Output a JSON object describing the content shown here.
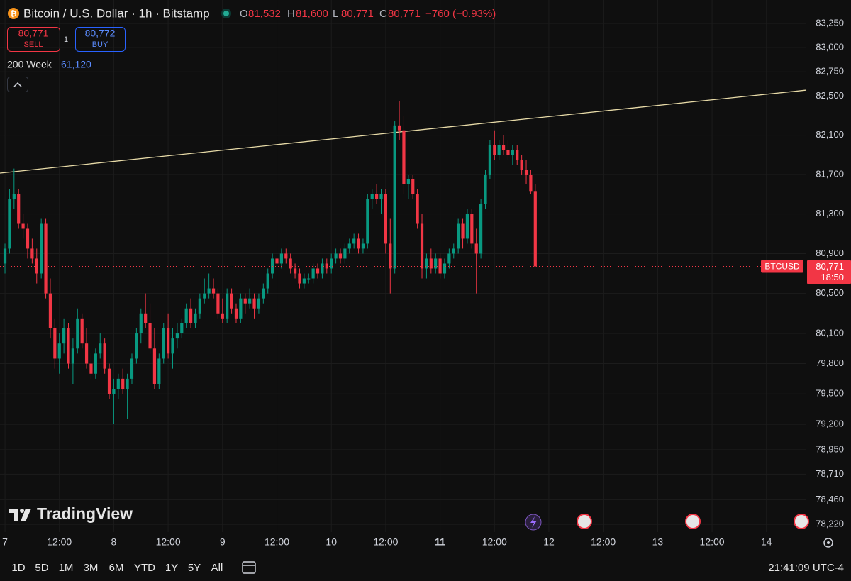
{
  "header": {
    "title": "Bitcoin / U.S. Dollar · 1h · Bitstamp",
    "ohlc": [
      {
        "key": "O",
        "value": "81,532"
      },
      {
        "key": "H",
        "value": "81,600"
      },
      {
        "key": "L",
        "value": "80,771"
      },
      {
        "key": "C",
        "value": "80,771"
      }
    ],
    "change": "−760 (−0.93%)",
    "sell_price": "80,771",
    "sell_label": "SELL",
    "quantity": "1",
    "buy_price": "80,772",
    "buy_label": "BUY",
    "indicator_name": "200 Week",
    "indicator_value": "61,120"
  },
  "watermark": "TradingView",
  "toolbar": {
    "ranges": [
      "1D",
      "5D",
      "1M",
      "3M",
      "6M",
      "YTD",
      "1Y",
      "5Y",
      "All"
    ],
    "clock": "21:41:09 UTC-4"
  },
  "chart_data": {
    "type": "candlestick",
    "log_scale": true,
    "grid": true,
    "up_color": "#089981",
    "down_color": "#f23645",
    "ylim": [
      78145,
      83493
    ],
    "yticks": [
      {
        "value": 83250,
        "label": "83,250"
      },
      {
        "value": 83000,
        "label": "83,000"
      },
      {
        "value": 82750,
        "label": "82,750"
      },
      {
        "value": 82500,
        "label": "82,500"
      },
      {
        "value": 82100,
        "label": "82,100"
      },
      {
        "value": 81700,
        "label": "81,700"
      },
      {
        "value": 81300,
        "label": "81,300"
      },
      {
        "value": 80900,
        "label": "80,900"
      },
      {
        "value": 80500,
        "label": "80,500"
      },
      {
        "value": 80100,
        "label": "80,100"
      },
      {
        "value": 79800,
        "label": "79,800"
      },
      {
        "value": 79500,
        "label": "79,500"
      },
      {
        "value": 79200,
        "label": "79,200"
      },
      {
        "value": 78950,
        "label": "78,950"
      },
      {
        "value": 78710,
        "label": "78,710"
      },
      {
        "value": 78460,
        "label": "78,460"
      },
      {
        "value": 78220,
        "label": "78,220"
      }
    ],
    "xlim": [
      -1.1,
      176.8
    ],
    "xticks": [
      {
        "value": 0,
        "label": "7"
      },
      {
        "value": 12,
        "label": "12:00"
      },
      {
        "value": 24,
        "label": "8"
      },
      {
        "value": 36,
        "label": "12:00"
      },
      {
        "value": 48,
        "label": "9"
      },
      {
        "value": 60,
        "label": "12:00"
      },
      {
        "value": 72,
        "label": "10"
      },
      {
        "value": 84,
        "label": "12:00"
      },
      {
        "value": 96,
        "label": "11"
      },
      {
        "value": 108,
        "label": "12:00"
      },
      {
        "value": 120,
        "label": "12"
      },
      {
        "value": 132,
        "label": "12:00"
      },
      {
        "value": 144,
        "label": "13"
      },
      {
        "value": 156,
        "label": "12:00"
      },
      {
        "value": 168,
        "label": "14"
      }
    ],
    "x": [
      0,
      1,
      2,
      3,
      4,
      5,
      6,
      7,
      8,
      9,
      10,
      11,
      12,
      13,
      14,
      15,
      16,
      17,
      18,
      19,
      20,
      21,
      22,
      23,
      24,
      25,
      26,
      27,
      28,
      29,
      30,
      31,
      32,
      33,
      34,
      35,
      36,
      37,
      38,
      39,
      40,
      41,
      42,
      43,
      44,
      45,
      46,
      47,
      48,
      49,
      50,
      51,
      52,
      53,
      54,
      55,
      56,
      57,
      58,
      59,
      60,
      61,
      62,
      63,
      64,
      65,
      66,
      67,
      68,
      69,
      70,
      71,
      72,
      73,
      74,
      75,
      76,
      77,
      78,
      79,
      80,
      81,
      82,
      83,
      84,
      85,
      86,
      87,
      88,
      89,
      90,
      91,
      92,
      93,
      94,
      95,
      96,
      97,
      98,
      99,
      100,
      101,
      102,
      103,
      104,
      105,
      106,
      107,
      108,
      109,
      110,
      111,
      112,
      113,
      114,
      115,
      116,
      117
    ],
    "candles": [
      [
        80800,
        81000,
        80700,
        80950
      ],
      [
        80950,
        81550,
        80900,
        81450
      ],
      [
        81450,
        81760,
        81350,
        81500
      ],
      [
        81500,
        81550,
        81150,
        81200
      ],
      [
        81200,
        81300,
        81050,
        81150
      ],
      [
        81150,
        81200,
        80850,
        80950
      ],
      [
        80950,
        81050,
        80800,
        80850
      ],
      [
        80850,
        80950,
        80600,
        80700
      ],
      [
        80700,
        81250,
        80650,
        81200
      ],
      [
        81200,
        81250,
        80450,
        80500
      ],
      [
        80500,
        80650,
        80050,
        80150
      ],
      [
        80150,
        80250,
        79750,
        79850
      ],
      [
        79850,
        80100,
        79700,
        80000
      ],
      [
        80000,
        80250,
        79900,
        80150
      ],
      [
        80150,
        80200,
        79750,
        79800
      ],
      [
        79800,
        80050,
        79600,
        79950
      ],
      [
        79950,
        80350,
        79900,
        80250
      ],
      [
        80250,
        80300,
        79950,
        80000
      ],
      [
        80000,
        80150,
        79750,
        79800
      ],
      [
        79800,
        79900,
        79650,
        79700
      ],
      [
        79700,
        79950,
        79650,
        79900
      ],
      [
        79900,
        80100,
        79850,
        80000
      ],
      [
        80000,
        80050,
        79700,
        79750
      ],
      [
        79750,
        79800,
        79450,
        79500
      ],
      [
        79500,
        79650,
        79200,
        79550
      ],
      [
        79550,
        79700,
        79450,
        79650
      ],
      [
        79650,
        79750,
        79500,
        79550
      ],
      [
        79550,
        79700,
        79250,
        79650
      ],
      [
        79650,
        79900,
        79600,
        79850
      ],
      [
        79850,
        80150,
        79800,
        80100
      ],
      [
        80100,
        80350,
        80000,
        80300
      ],
      [
        80300,
        80500,
        80150,
        80200
      ],
      [
        80200,
        80400,
        79900,
        79950
      ],
      [
        79950,
        80150,
        79550,
        79600
      ],
      [
        79600,
        79900,
        79550,
        79850
      ],
      [
        79850,
        80200,
        79800,
        80150
      ],
      [
        80150,
        80300,
        79850,
        79900
      ],
      [
        79900,
        80150,
        79750,
        80050
      ],
      [
        80050,
        80200,
        79950,
        80100
      ],
      [
        80100,
        80250,
        80050,
        80200
      ],
      [
        80200,
        80400,
        80150,
        80350
      ],
      [
        80350,
        80450,
        80150,
        80200
      ],
      [
        80200,
        80350,
        80150,
        80300
      ],
      [
        80300,
        80500,
        80250,
        80450
      ],
      [
        80450,
        80650,
        80400,
        80500
      ],
      [
        80500,
        80700,
        80450,
        80550
      ],
      [
        80550,
        80650,
        80450,
        80500
      ],
      [
        80500,
        80550,
        80250,
        80300
      ],
      [
        80300,
        80450,
        80200,
        80250
      ],
      [
        80250,
        80550,
        80200,
        80500
      ],
      [
        80500,
        80550,
        80300,
        80350
      ],
      [
        80350,
        80400,
        80200,
        80250
      ],
      [
        80250,
        80500,
        80200,
        80450
      ],
      [
        80450,
        80500,
        80300,
        80400
      ],
      [
        80400,
        80550,
        80350,
        80450
      ],
      [
        80450,
        80500,
        80250,
        80350
      ],
      [
        80350,
        80500,
        80300,
        80450
      ],
      [
        80450,
        80600,
        80400,
        80550
      ],
      [
        80550,
        80750,
        80500,
        80700
      ],
      [
        80700,
        80900,
        80650,
        80850
      ],
      [
        80850,
        80950,
        80700,
        80800
      ],
      [
        80800,
        80950,
        80750,
        80900
      ],
      [
        80900,
        80950,
        80800,
        80850
      ],
      [
        80850,
        80900,
        80700,
        80750
      ],
      [
        80750,
        80800,
        80650,
        80700
      ],
      [
        80700,
        80750,
        80550,
        80600
      ],
      [
        80600,
        80700,
        80550,
        80650
      ],
      [
        80650,
        80700,
        80600,
        80650
      ],
      [
        80650,
        80800,
        80600,
        80750
      ],
      [
        80750,
        80800,
        80650,
        80700
      ],
      [
        80700,
        80850,
        80650,
        80800
      ],
      [
        80800,
        80850,
        80700,
        80750
      ],
      [
        80750,
        80900,
        80700,
        80850
      ],
      [
        80850,
        80950,
        80800,
        80900
      ],
      [
        80900,
        80950,
        80800,
        80850
      ],
      [
        80850,
        81000,
        80800,
        80950
      ],
      [
        80950,
        81050,
        80900,
        81000
      ],
      [
        81000,
        81100,
        80950,
        81050
      ],
      [
        81050,
        81100,
        80900,
        80950
      ],
      [
        80950,
        81050,
        80900,
        81000
      ],
      [
        81000,
        81500,
        80950,
        81450
      ],
      [
        81450,
        81550,
        81350,
        81500
      ],
      [
        81500,
        81600,
        81400,
        81450
      ],
      [
        81450,
        81550,
        81300,
        81500
      ],
      [
        81500,
        81550,
        80900,
        81000
      ],
      [
        81000,
        81250,
        80500,
        80750
      ],
      [
        80750,
        82250,
        80700,
        82200
      ],
      [
        82200,
        82450,
        82050,
        82150
      ],
      [
        82150,
        82300,
        81500,
        81600
      ],
      [
        81600,
        81700,
        81450,
        81650
      ],
      [
        81650,
        81700,
        81450,
        81500
      ],
      [
        81500,
        81550,
        81150,
        81200
      ],
      [
        81200,
        81300,
        80650,
        80750
      ],
      [
        80750,
        80900,
        80650,
        80850
      ],
      [
        80850,
        80950,
        80700,
        80750
      ],
      [
        80750,
        80900,
        80700,
        80850
      ],
      [
        80850,
        80900,
        80650,
        80700
      ],
      [
        80700,
        80850,
        80650,
        80800
      ],
      [
        80800,
        80950,
        80750,
        80900
      ],
      [
        80900,
        81000,
        80850,
        80950
      ],
      [
        80950,
        81250,
        80900,
        81200
      ],
      [
        81200,
        81250,
        80950,
        81050
      ],
      [
        81050,
        81350,
        81000,
        81300
      ],
      [
        81300,
        81350,
        80950,
        81000
      ],
      [
        81000,
        81150,
        80500,
        80900
      ],
      [
        80900,
        81450,
        80850,
        81400
      ],
      [
        81400,
        81750,
        81350,
        81700
      ],
      [
        81700,
        82050,
        81650,
        82000
      ],
      [
        82000,
        82150,
        81850,
        81900
      ],
      [
        81900,
        82050,
        81850,
        82000
      ],
      [
        82000,
        82100,
        81900,
        81950
      ],
      [
        81950,
        82050,
        81850,
        81900
      ],
      [
        81900,
        82000,
        81800,
        81950
      ],
      [
        81950,
        82000,
        81800,
        81850
      ],
      [
        81850,
        81900,
        81700,
        81750
      ],
      [
        81750,
        81850,
        81600,
        81700
      ],
      [
        81700,
        81750,
        81500,
        81532
      ],
      [
        81532,
        81600,
        80771,
        80771
      ]
    ],
    "trendline": {
      "x": [
        -1.1,
        176.8
      ],
      "y": [
        81714,
        82562
      ],
      "color": "#e8dba8"
    },
    "last_price": {
      "symbol": "BTCUSD",
      "value": 80771,
      "value_label": "80,771",
      "countdown": "18:50",
      "color": "#f23645"
    }
  }
}
